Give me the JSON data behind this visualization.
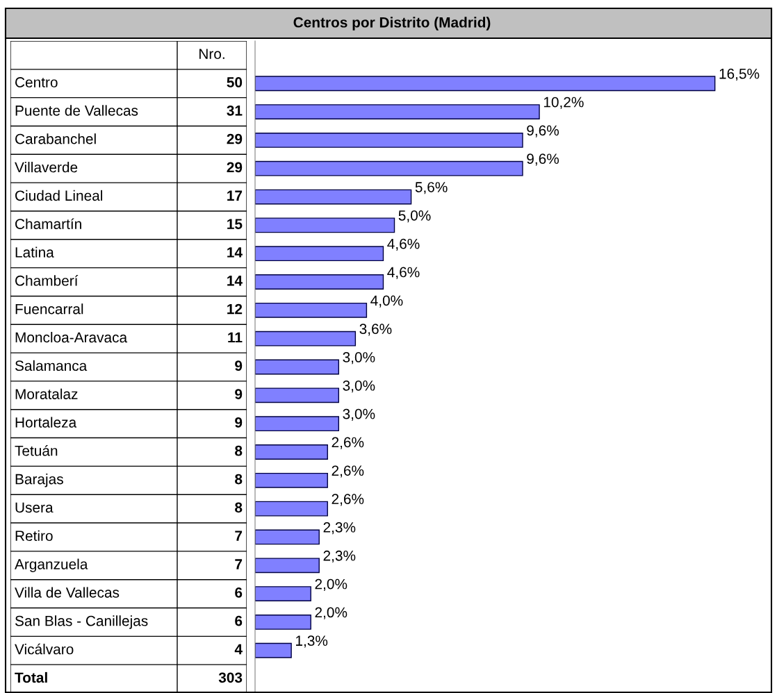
{
  "chart_data": [
    {
      "type": "other",
      "title": "Centros por Distrito (Madrid)",
      "xlabel": "Nro.",
      "categories": [
        "Centro",
        "Puente de Vallecas",
        "Carabanchel",
        "Villaverde",
        "Ciudad Lineal",
        "Chamartín",
        "Latina",
        "Chamberí",
        "Fuencarral",
        "Moncloa-Aravaca",
        "Salamanca",
        "Moratalaz",
        "Hortaleza",
        "Tetuán",
        "Barajas",
        "Usera",
        "Retiro",
        "Arganzuela",
        "Villa de Vallecas",
        "San Blas - Canillejas",
        "Vicálvaro"
      ],
      "values": [
        50,
        31,
        29,
        29,
        17,
        15,
        14,
        14,
        12,
        11,
        9,
        9,
        9,
        8,
        8,
        8,
        7,
        7,
        6,
        6,
        4
      ],
      "data_labels": true,
      "annotations": [
        "Total"
      ],
      "totals": [
        "303"
      ]
    },
    {
      "type": "bar",
      "orientation": "horizontal",
      "color": "#8080ff",
      "categories": [
        null,
        null,
        null,
        null,
        null,
        null,
        null,
        null,
        null,
        null,
        null,
        null,
        null,
        null,
        null,
        null,
        null,
        null,
        null,
        null,
        null
      ],
      "values": [
        16.5,
        10.2,
        9.6,
        9.6,
        5.6,
        5.0,
        4.6,
        4.6,
        4.0,
        3.6,
        3.0,
        3.0,
        3.0,
        2.6,
        2.6,
        2.6,
        2.3,
        2.3,
        2.0,
        2.0,
        1.3
      ],
      "value_labels": [
        "16,5%",
        "10,2%",
        "9,6%",
        "9,6%",
        "5,6%",
        "5,0%",
        "4,6%",
        "4,6%",
        "4,0%",
        "3,6%",
        "3,0%",
        "3,0%",
        "3,0%",
        "2,6%",
        "2,6%",
        "2,6%",
        "2,3%",
        "2,3%",
        "2,0%",
        "2,0%",
        "1,3%"
      ]
    }
  ]
}
